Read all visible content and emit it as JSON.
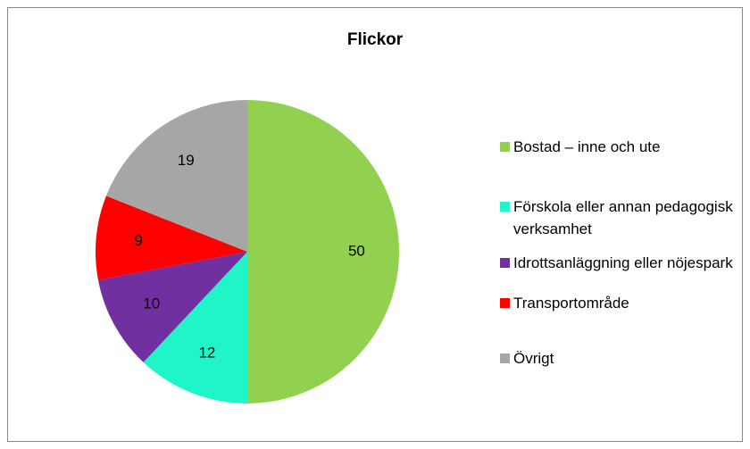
{
  "chart_data": {
    "type": "pie",
    "title": "Flickor",
    "categories": [
      "Bostad – inne och ute",
      "Förskola eller annan pedagogisk verksamhet",
      "Idrottsanläggning eller nöjespark",
      "Transportområde",
      "Övrigt"
    ],
    "values": [
      50,
      12,
      10,
      9,
      19
    ],
    "colors": [
      "#92d050",
      "#1ff5c9",
      "#7030a0",
      "#ff0000",
      "#a6a6a6"
    ],
    "legend": "right"
  }
}
